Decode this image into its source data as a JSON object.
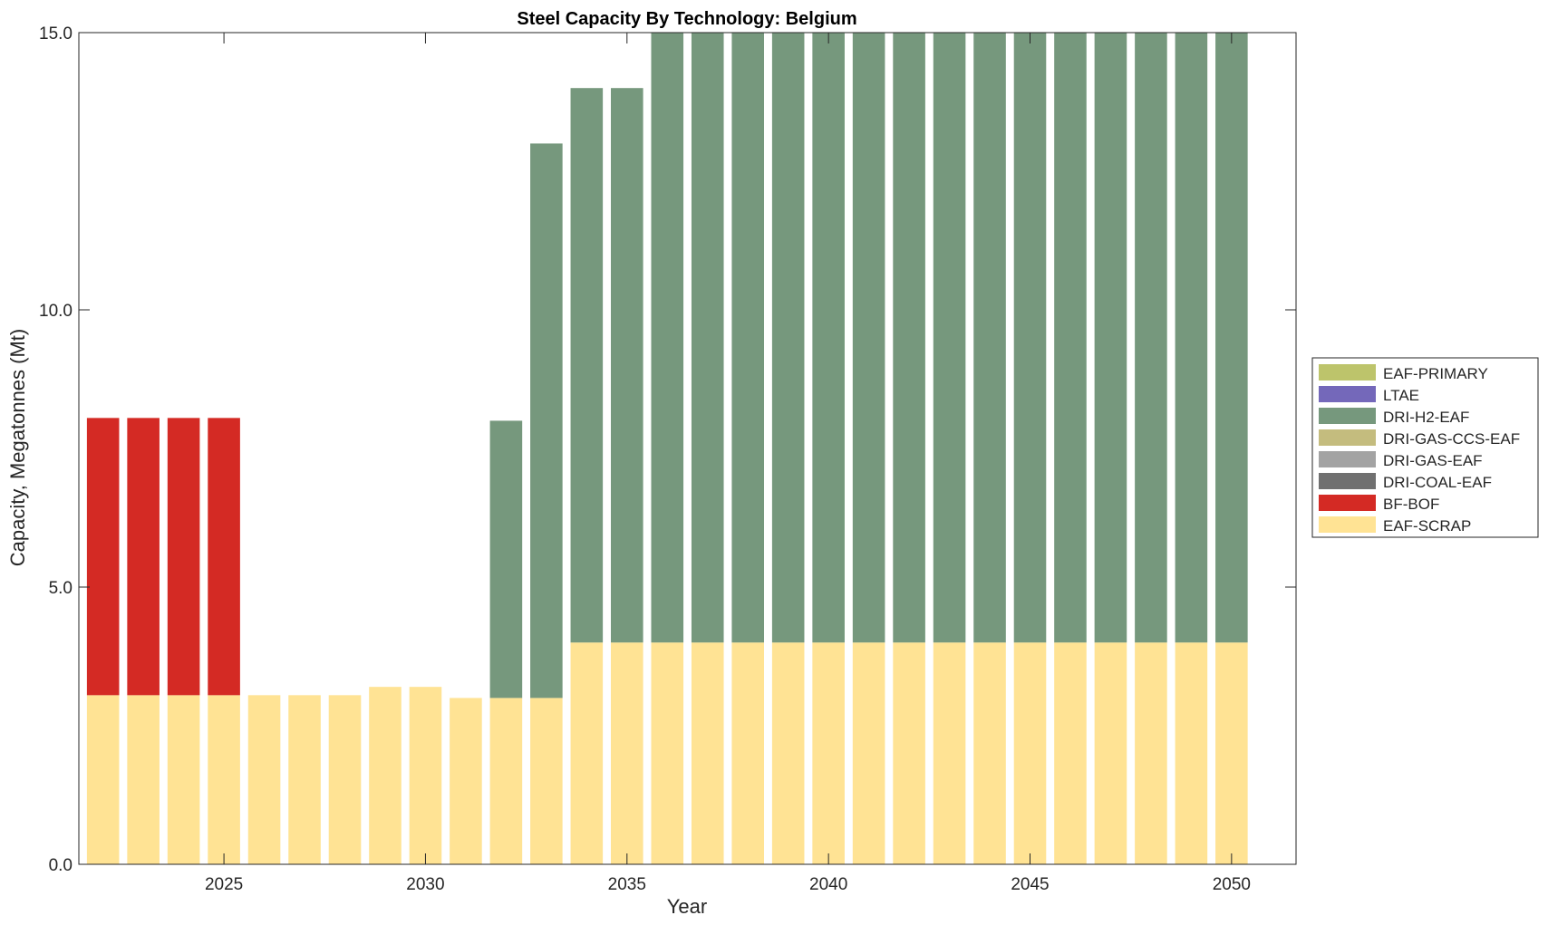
{
  "chart_data": {
    "type": "bar",
    "stacked": true,
    "title": "Steel Capacity By Technology: Belgium",
    "xlabel": "Year",
    "ylabel": "Capacity, Megatonnes (Mt)",
    "ylim": [
      0,
      15
    ],
    "xlim": [
      2021.4,
      2051.6
    ],
    "yticks": [
      0,
      5,
      10,
      15
    ],
    "ytick_labels": [
      "0.0",
      "5.0",
      "10.0",
      "15.0"
    ],
    "xticks": [
      2025,
      2030,
      2035,
      2040,
      2045,
      2050
    ],
    "xtick_labels": [
      "2025",
      "2030",
      "2035",
      "2040",
      "2045",
      "2050"
    ],
    "grid": false,
    "legend_position": "outside-right",
    "x": [
      2022,
      2023,
      2024,
      2025,
      2026,
      2027,
      2028,
      2029,
      2030,
      2031,
      2032,
      2033,
      2034,
      2035,
      2036,
      2037,
      2038,
      2039,
      2040,
      2041,
      2042,
      2043,
      2044,
      2045,
      2046,
      2047,
      2048,
      2049,
      2050
    ],
    "series": [
      {
        "name": "EAF-SCRAP",
        "color": "#FFE394",
        "values": [
          3.05,
          3.05,
          3.05,
          3.05,
          3.05,
          3.05,
          3.05,
          3.2,
          3.2,
          3.0,
          3.0,
          3.0,
          4.0,
          4.0,
          4.0,
          4.0,
          4.0,
          4.0,
          4.0,
          4.0,
          4.0,
          4.0,
          4.0,
          4.0,
          4.0,
          4.0,
          4.0,
          4.0,
          4.0
        ]
      },
      {
        "name": "BF-BOF",
        "color": "#D42A24",
        "values": [
          5.0,
          5.0,
          5.0,
          5.0,
          0,
          0,
          0,
          0,
          0,
          0,
          0,
          0,
          0,
          0,
          0,
          0,
          0,
          0,
          0,
          0,
          0,
          0,
          0,
          0,
          0,
          0,
          0,
          0,
          0
        ]
      },
      {
        "name": "DRI-COAL-EAF",
        "color": "#707070",
        "values": [
          0,
          0,
          0,
          0,
          0,
          0,
          0,
          0,
          0,
          0,
          0,
          0,
          0,
          0,
          0,
          0,
          0,
          0,
          0,
          0,
          0,
          0,
          0,
          0,
          0,
          0,
          0,
          0,
          0
        ]
      },
      {
        "name": "DRI-GAS-EAF",
        "color": "#A3A3A3",
        "values": [
          0,
          0,
          0,
          0,
          0,
          0,
          0,
          0,
          0,
          0,
          0,
          0,
          0,
          0,
          0,
          0,
          0,
          0,
          0,
          0,
          0,
          0,
          0,
          0,
          0,
          0,
          0,
          0,
          0
        ]
      },
      {
        "name": "DRI-GAS-CCS-EAF",
        "color": "#C4BC7E",
        "values": [
          0,
          0,
          0,
          0,
          0,
          0,
          0,
          0,
          0,
          0,
          0,
          0,
          0,
          0,
          0,
          0,
          0,
          0,
          0,
          0,
          0,
          0,
          0,
          0,
          0,
          0,
          0,
          0,
          0
        ]
      },
      {
        "name": "DRI-H2-EAF",
        "color": "#76987D",
        "values": [
          0,
          0,
          0,
          0,
          0,
          0,
          0,
          0,
          0,
          0,
          5.0,
          10.0,
          10.0,
          10.0,
          11.0,
          11.0,
          11.0,
          11.0,
          11.0,
          11.0,
          11.0,
          11.0,
          11.0,
          11.0,
          11.0,
          11.0,
          11.0,
          11.0,
          11.0
        ]
      },
      {
        "name": "LTAE",
        "color": "#7468BA",
        "values": [
          0,
          0,
          0,
          0,
          0,
          0,
          0,
          0,
          0,
          0,
          0,
          0,
          0,
          0,
          0,
          0,
          0,
          0,
          0,
          0,
          0,
          0,
          0,
          0,
          0,
          0,
          0,
          0,
          0
        ]
      },
      {
        "name": "EAF-PRIMARY",
        "color": "#BDC46B",
        "values": [
          0,
          0,
          0,
          0,
          0,
          0,
          0,
          0,
          0,
          0,
          0,
          0,
          0,
          0,
          0,
          0,
          0,
          0,
          0,
          0,
          0,
          0,
          0,
          0,
          0,
          0,
          0,
          0,
          0
        ]
      }
    ],
    "legend_order": [
      "EAF-PRIMARY",
      "LTAE",
      "DRI-H2-EAF",
      "DRI-GAS-CCS-EAF",
      "DRI-GAS-EAF",
      "DRI-COAL-EAF",
      "BF-BOF",
      "EAF-SCRAP"
    ]
  }
}
